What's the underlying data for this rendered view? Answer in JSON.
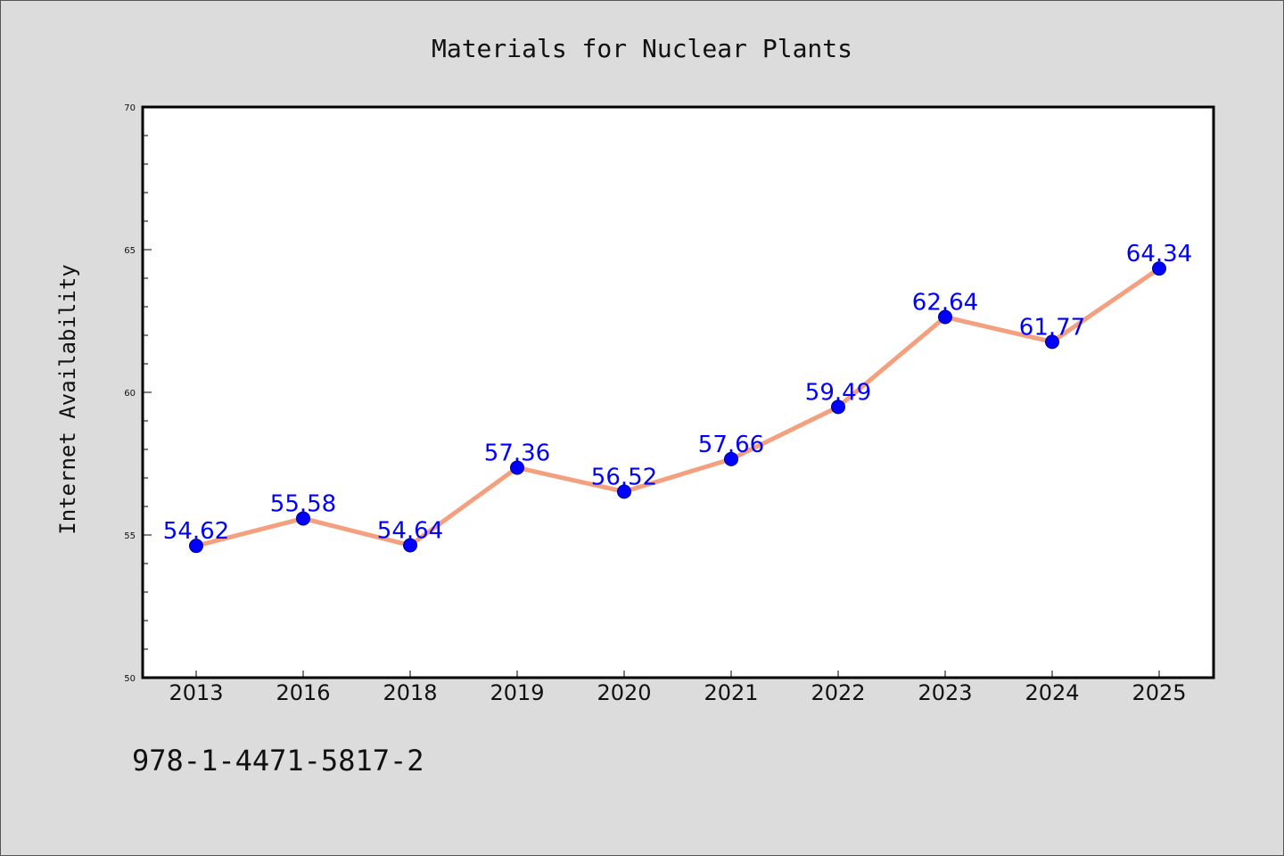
{
  "chart_data": {
    "type": "line",
    "title": "Materials for Nuclear Plants",
    "ylabel": "Internet Availability",
    "xlabel": "",
    "categories": [
      "2013",
      "2016",
      "2018",
      "2019",
      "2020",
      "2021",
      "2022",
      "2023",
      "2024",
      "2025"
    ],
    "values": [
      54.62,
      55.58,
      54.64,
      57.36,
      56.52,
      57.66,
      59.49,
      62.64,
      61.77,
      64.34
    ],
    "data_labels": [
      "54.62",
      "55.58",
      "54.64",
      "57.36",
      "56.52",
      "57.66",
      "59.49",
      "62.64",
      "61.77",
      "64.34"
    ],
    "ylim": [
      50,
      70
    ],
    "yticks": [
      "50",
      "55",
      "60",
      "65",
      "70"
    ],
    "line_color": "#f4a07e",
    "marker_color": "#0000ff",
    "label_color": "#0000ff",
    "grid": false
  },
  "footnote": "978-1-4471-5817-2"
}
